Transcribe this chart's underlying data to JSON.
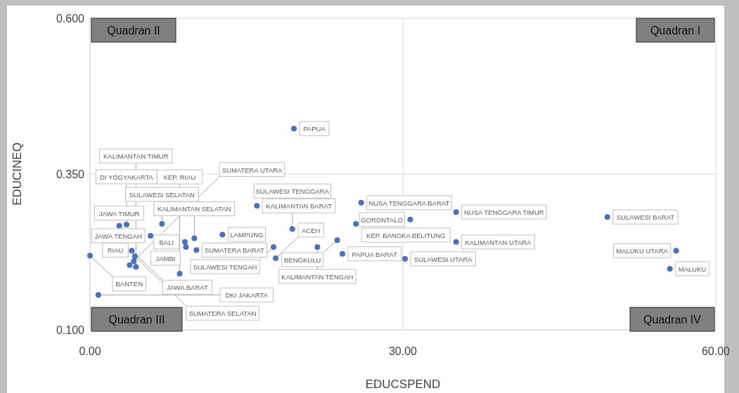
{
  "chart_data": {
    "type": "scatter",
    "xlabel": "EDUCSPEND",
    "ylabel": "EDUCINEQ",
    "xlim": [
      0,
      60
    ],
    "ylim": [
      0.1,
      0.6
    ],
    "xticks": [
      {
        "value": 0,
        "label": "0.00"
      },
      {
        "value": 30,
        "label": "30.00"
      },
      {
        "value": 60,
        "label": "60.00"
      }
    ],
    "yticks": [
      {
        "value": 0.1,
        "label": "0.100"
      },
      {
        "value": 0.35,
        "label": "0.350"
      },
      {
        "value": 0.6,
        "label": "0.600"
      }
    ],
    "grid": true,
    "marker": "circle",
    "series": [
      {
        "color": "#4472c4",
        "x": [
          19.55,
          26.0,
          16.0,
          35.1,
          49.6,
          30.7,
          35.1,
          56.2,
          55.6,
          30.2,
          24.2,
          23.7,
          21.8,
          17.6,
          19.4,
          25.5,
          12.7,
          9.1,
          9.2,
          10.0,
          10.2,
          6.9,
          2.8,
          3.5,
          5.8,
          0.0,
          4.0,
          4.3,
          3.8,
          4.4,
          8.6,
          4.2,
          0.8,
          17.8
        ],
        "values": [
          0.423,
          0.304,
          0.299,
          0.289,
          0.281,
          0.277,
          0.241,
          0.227,
          0.198,
          0.214,
          0.222,
          0.244,
          0.233,
          0.233,
          0.262,
          0.27,
          0.253,
          0.241,
          0.233,
          0.247,
          0.228,
          0.27,
          0.267,
          0.269,
          0.251,
          0.219,
          0.227,
          0.218,
          0.204,
          0.201,
          0.19,
          0.21,
          0.156,
          0.215
        ]
      }
    ],
    "annotations": [
      "Quadran II",
      "Quadran I",
      "Quadran III",
      "Quadran IV",
      {
        "text": "PAPUA",
        "x": 19.55,
        "y": 0.423
      },
      {
        "text": "NUSA TENGGARA BARAT",
        "x": 26.0,
        "y": 0.304
      },
      {
        "text": "KALIMANTAN BARAT",
        "x": 16.0,
        "y": 0.299
      },
      {
        "text": "NUSA TENGGARA TIMUR",
        "x": 35.1,
        "y": 0.289
      },
      {
        "text": "SULAWESI BARAT",
        "x": 49.6,
        "y": 0.281
      },
      {
        "text": "GORONTALO",
        "x": 30.7,
        "y": 0.277
      },
      {
        "text": "KALIMANTAN UTARA",
        "x": 35.1,
        "y": 0.241
      },
      {
        "text": "MALUKU UTARA",
        "x": 56.2,
        "y": 0.227
      },
      {
        "text": "MALUKU",
        "x": 55.6,
        "y": 0.198
      },
      {
        "text": "SULAWESI UTARA",
        "x": 30.2,
        "y": 0.214
      },
      {
        "text": "PAPUA BARAT",
        "x": 24.2,
        "y": 0.222
      },
      {
        "text": "BENGKULU",
        "x": 23.7,
        "y": 0.244
      },
      {
        "text": "KALIMANTAN TENGAH",
        "x": 21.8,
        "y": 0.233
      },
      {
        "text": "SULAWESI TENGAH",
        "x": 17.6,
        "y": 0.233
      },
      {
        "text": "SULAWESI TENGGARA",
        "x": 19.4,
        "y": 0.262
      },
      {
        "text": "KEP. BANGKA BELITUNG",
        "x": 25.5,
        "y": 0.27
      },
      {
        "text": "LAMPUNG",
        "x": 12.7,
        "y": 0.253
      },
      {
        "text": "BALI",
        "x": 9.1,
        "y": 0.241
      },
      {
        "text": "JAMBI",
        "x": 9.2,
        "y": 0.233
      },
      {
        "text": "KALIMANTAN SELATAN",
        "x": 10.0,
        "y": 0.247
      },
      {
        "text": "SUMATERA BARAT",
        "x": 10.2,
        "y": 0.228
      },
      {
        "text": "SULAWESI SELATAN",
        "x": 6.9,
        "y": 0.27
      },
      {
        "text": "JAWA TIMUR",
        "x": 2.8,
        "y": 0.267
      },
      {
        "text": "DI YOGYAKARTA",
        "x": 3.5,
        "y": 0.269
      },
      {
        "text": "JAWA TENGAH",
        "x": 5.8,
        "y": 0.251
      },
      {
        "text": "BANTEN",
        "x": 0.0,
        "y": 0.219
      },
      {
        "text": "JAWA BARAT",
        "x": 4.0,
        "y": 0.227
      },
      {
        "text": "SUMATERA SELATAN",
        "x": 4.3,
        "y": 0.218
      },
      {
        "text": "SUMATERA UTARA",
        "x": 3.8,
        "y": 0.204
      },
      {
        "text": "KALIMANTAN TIMUR",
        "x": 4.4,
        "y": 0.201
      },
      {
        "text": "KEP. RIAU",
        "x": 8.6,
        "y": 0.19
      },
      {
        "text": "RIAU",
        "x": 4.2,
        "y": 0.21
      },
      {
        "text": "DKI JAKARTA",
        "x": 0.8,
        "y": 0.156
      },
      {
        "text": "ACEH",
        "x": 17.8,
        "y": 0.215
      }
    ]
  }
}
